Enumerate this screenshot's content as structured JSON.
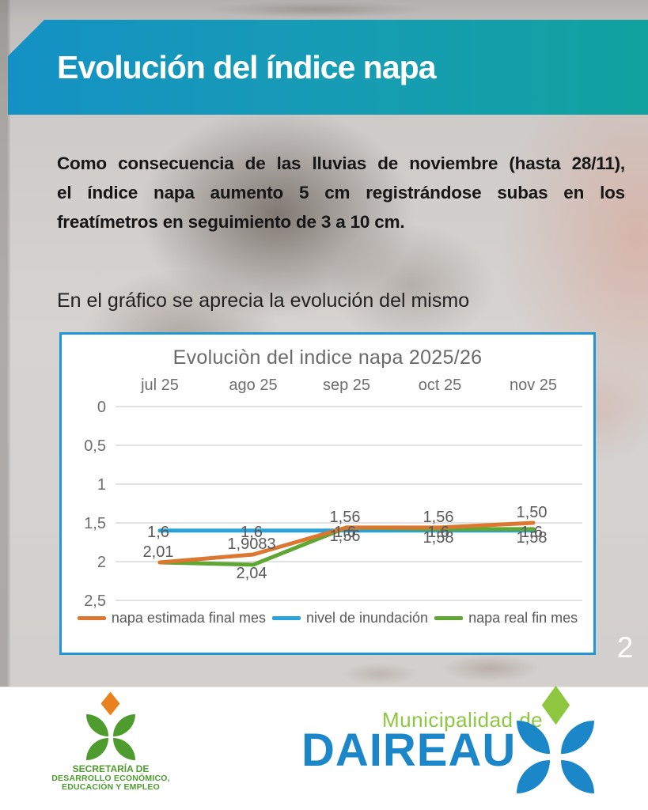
{
  "page": {
    "number": "2"
  },
  "header": {
    "title": "Evolución del índice napa"
  },
  "intro": {
    "lines": [
      "Como consecuencia de las lluvias de noviembre (hasta 28/11),",
      "el índice napa aumento 5 cm registrándose subas en los",
      "freatímetros en seguimiento de 3 a 10 cm."
    ],
    "caption": "En el gráfico se aprecia la evolución del mismo"
  },
  "chart_data": {
    "type": "line",
    "title": "Evoluciòn del indice napa 2025/26",
    "categories": [
      "jul 25",
      "ago 25",
      "sep 25",
      "oct 25",
      "nov 25"
    ],
    "y_ticks": [
      "0",
      "0,5",
      "1",
      "1,5",
      "2",
      "2,5"
    ],
    "ylim": [
      0,
      2.5
    ],
    "y_axis_inverted": true,
    "grid": true,
    "legend_position": "bottom",
    "series": [
      {
        "name": "napa estimada final mes",
        "color": "#dc7731",
        "values": [
          2.01,
          1.9083,
          1.56,
          1.56,
          1.5
        ],
        "labels": [
          "2,01",
          "1,9083",
          "1,56",
          "1,56",
          "1,50"
        ]
      },
      {
        "name": "nivel de inundación",
        "color": "#2aa3dc",
        "values": [
          1.6,
          1.6,
          1.6,
          1.6,
          1.6
        ],
        "labels": [
          "1,6",
          "1,6",
          "1,6",
          "1,6",
          "1,6"
        ]
      },
      {
        "name": "napa real fin mes",
        "color": "#5fa633",
        "values": [
          2.01,
          2.04,
          1.56,
          1.58,
          1.58
        ],
        "labels": [
          "",
          "2,04",
          "1,56",
          "1,58",
          "1,58"
        ]
      }
    ]
  },
  "footer": {
    "secretaria": {
      "line1": "SECRETARÍA DE",
      "line2": "DESARROLLO ECONÓMICO,",
      "line3": "EDUCACIÓN Y EMPLEO"
    },
    "municipalidad": {
      "top": "Municipalidad de",
      "name": "DAIREAU"
    }
  },
  "colors": {
    "banner_left": "#1491c4",
    "banner_right": "#12a3a0",
    "chart_border": "#1f97d4",
    "series_orange": "#dc7731",
    "series_blue": "#2aa3dc",
    "series_green": "#5fa633",
    "axis_text": "#6e6e6e",
    "label_text": "#595959",
    "daireaux_blue": "#1b87c9",
    "daireaux_green": "#8dc63f",
    "secretaria_green": "#4e9c2e",
    "secretaria_orange": "#e8821e"
  }
}
